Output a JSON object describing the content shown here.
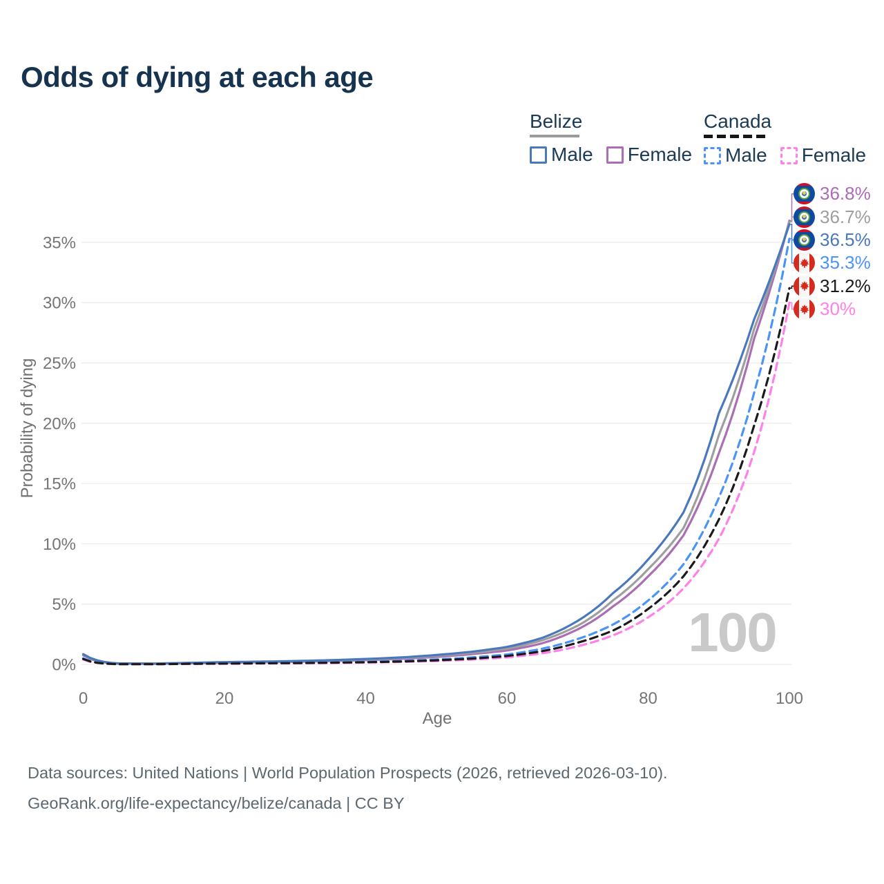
{
  "header": {
    "title": "Odds of dying at each age"
  },
  "legend": {
    "groups": [
      {
        "label": "Belize",
        "line_style": "solid",
        "underline_color": "#9b9b9b",
        "items": [
          {
            "label": "Male",
            "color": "#4a78bd"
          },
          {
            "label": "Female",
            "color": "#ab6db3"
          }
        ]
      },
      {
        "label": "Canada",
        "line_style": "dashed",
        "underline_color": "#161616",
        "items": [
          {
            "label": "Male",
            "color": "#4b93f7"
          },
          {
            "label": "Female",
            "color": "#ff80e9"
          }
        ]
      }
    ]
  },
  "chart_data": {
    "type": "line",
    "title": "Odds of dying at each age",
    "xlabel": "Age",
    "ylabel": "Probability of dying",
    "xlim": [
      0,
      100
    ],
    "ylim": [
      0,
      38
    ],
    "grid": "horizontal",
    "watermark": "100",
    "xticks": [
      {
        "label": "0",
        "value": 0
      },
      {
        "label": "20",
        "value": 20
      },
      {
        "label": "40",
        "value": 40
      },
      {
        "label": "60",
        "value": 60
      },
      {
        "label": "80",
        "value": 80
      },
      {
        "label": "100",
        "value": 100
      }
    ],
    "yticks": [
      {
        "label": "0%",
        "value": 0
      },
      {
        "label": "5%",
        "value": 5
      },
      {
        "label": "10%",
        "value": 10
      },
      {
        "label": "15%",
        "value": 15
      },
      {
        "label": "20%",
        "value": 20
      },
      {
        "label": "25%",
        "value": 25
      },
      {
        "label": "30%",
        "value": 30
      },
      {
        "label": "35%",
        "value": 35
      }
    ],
    "ages": [
      0,
      5,
      10,
      15,
      20,
      25,
      30,
      35,
      40,
      45,
      50,
      55,
      60,
      65,
      70,
      75,
      80,
      85,
      90,
      95,
      100
    ],
    "series": [
      {
        "name": "Belize Female",
        "country": "Belize",
        "sex": "Female",
        "color": "#ab6db3",
        "dash": "solid",
        "end_value": 36.8,
        "end_label": "36.8%",
        "flag": "belize",
        "values": [
          0.75,
          0.06,
          0.05,
          0.09,
          0.13,
          0.17,
          0.21,
          0.27,
          0.35,
          0.46,
          0.62,
          0.85,
          1.15,
          1.75,
          2.9,
          4.8,
          7.3,
          10.7,
          17.5,
          27.0,
          36.8
        ]
      },
      {
        "name": "Belize Both sexes",
        "country": "Belize",
        "sex": "Both",
        "color": "#9e9e9e",
        "dash": "solid",
        "end_value": 36.7,
        "end_label": "36.7%",
        "flag": "belize",
        "values": [
          0.8,
          0.07,
          0.06,
          0.11,
          0.16,
          0.2,
          0.25,
          0.31,
          0.4,
          0.52,
          0.7,
          0.95,
          1.3,
          2.0,
          3.2,
          5.3,
          7.9,
          11.3,
          19.0,
          27.8,
          36.7
        ]
      },
      {
        "name": "Belize Male",
        "country": "Belize",
        "sex": "Male",
        "color": "#4a78bd",
        "dash": "solid",
        "end_value": 36.5,
        "end_label": "36.5%",
        "flag": "belize",
        "values": [
          0.85,
          0.08,
          0.07,
          0.13,
          0.19,
          0.23,
          0.28,
          0.35,
          0.45,
          0.58,
          0.78,
          1.05,
          1.45,
          2.2,
          3.6,
          5.9,
          8.7,
          12.6,
          20.8,
          28.6,
          36.5
        ]
      },
      {
        "name": "Canada Male",
        "country": "Canada",
        "sex": "Male",
        "color": "#4b93f7",
        "dash": "dashed",
        "end_value": 35.3,
        "end_label": "35.3%",
        "flag": "canada",
        "values": [
          0.5,
          0.02,
          0.02,
          0.06,
          0.09,
          0.11,
          0.13,
          0.16,
          0.21,
          0.29,
          0.41,
          0.58,
          0.82,
          1.3,
          2.1,
          3.3,
          5.3,
          8.3,
          13.8,
          22.5,
          35.3
        ]
      },
      {
        "name": "Canada Both sexes",
        "country": "Canada",
        "sex": "Both",
        "color": "#1a1a1a",
        "dash": "dashed",
        "end_value": 31.2,
        "end_label": "31.2%",
        "flag": "canada",
        "values": [
          0.45,
          0.02,
          0.02,
          0.05,
          0.07,
          0.09,
          0.11,
          0.14,
          0.18,
          0.24,
          0.34,
          0.48,
          0.7,
          1.1,
          1.8,
          2.8,
          4.6,
          7.3,
          12.0,
          19.8,
          31.2
        ]
      },
      {
        "name": "Canada Female",
        "country": "Canada",
        "sex": "Female",
        "color": "#ff80e9",
        "dash": "dashed",
        "end_value": 30,
        "end_label": "30%",
        "flag": "canada",
        "values": [
          0.4,
          0.02,
          0.02,
          0.04,
          0.05,
          0.07,
          0.09,
          0.11,
          0.15,
          0.2,
          0.28,
          0.4,
          0.58,
          0.92,
          1.5,
          2.4,
          3.9,
          6.3,
          10.4,
          17.6,
          30.0
        ]
      }
    ],
    "end_rows": [
      {
        "label": "36.8%",
        "series": "Belize Female",
        "flag": "belize",
        "color": "#ab6db3",
        "end_value": 36.8
      },
      {
        "label": "36.7%",
        "series": "Belize Both sexes",
        "flag": "belize",
        "color": "#9e9e9e",
        "end_value": 36.7
      },
      {
        "label": "36.5%",
        "series": "Belize Male",
        "flag": "belize",
        "color": "#4a78bd",
        "end_value": 36.5
      },
      {
        "label": "35.3%",
        "series": "Canada Male",
        "flag": "canada",
        "color": "#4b93f7",
        "end_value": 35.3
      },
      {
        "label": "31.2%",
        "series": "Canada Both sexes",
        "flag": "canada",
        "color": "#1a1a1a",
        "end_value": 31.2
      },
      {
        "label": "30%",
        "series": "Canada Female",
        "flag": "canada",
        "color": "#ff80e9",
        "end_value": 30
      }
    ],
    "legend_position": "top-right"
  },
  "footer": {
    "line1": "Data sources: United Nations | World Population Prospects (2026, retrieved 2026-03-10).",
    "line2": "GeoRank.org/life-expectancy/belize/canada | CC BY"
  }
}
